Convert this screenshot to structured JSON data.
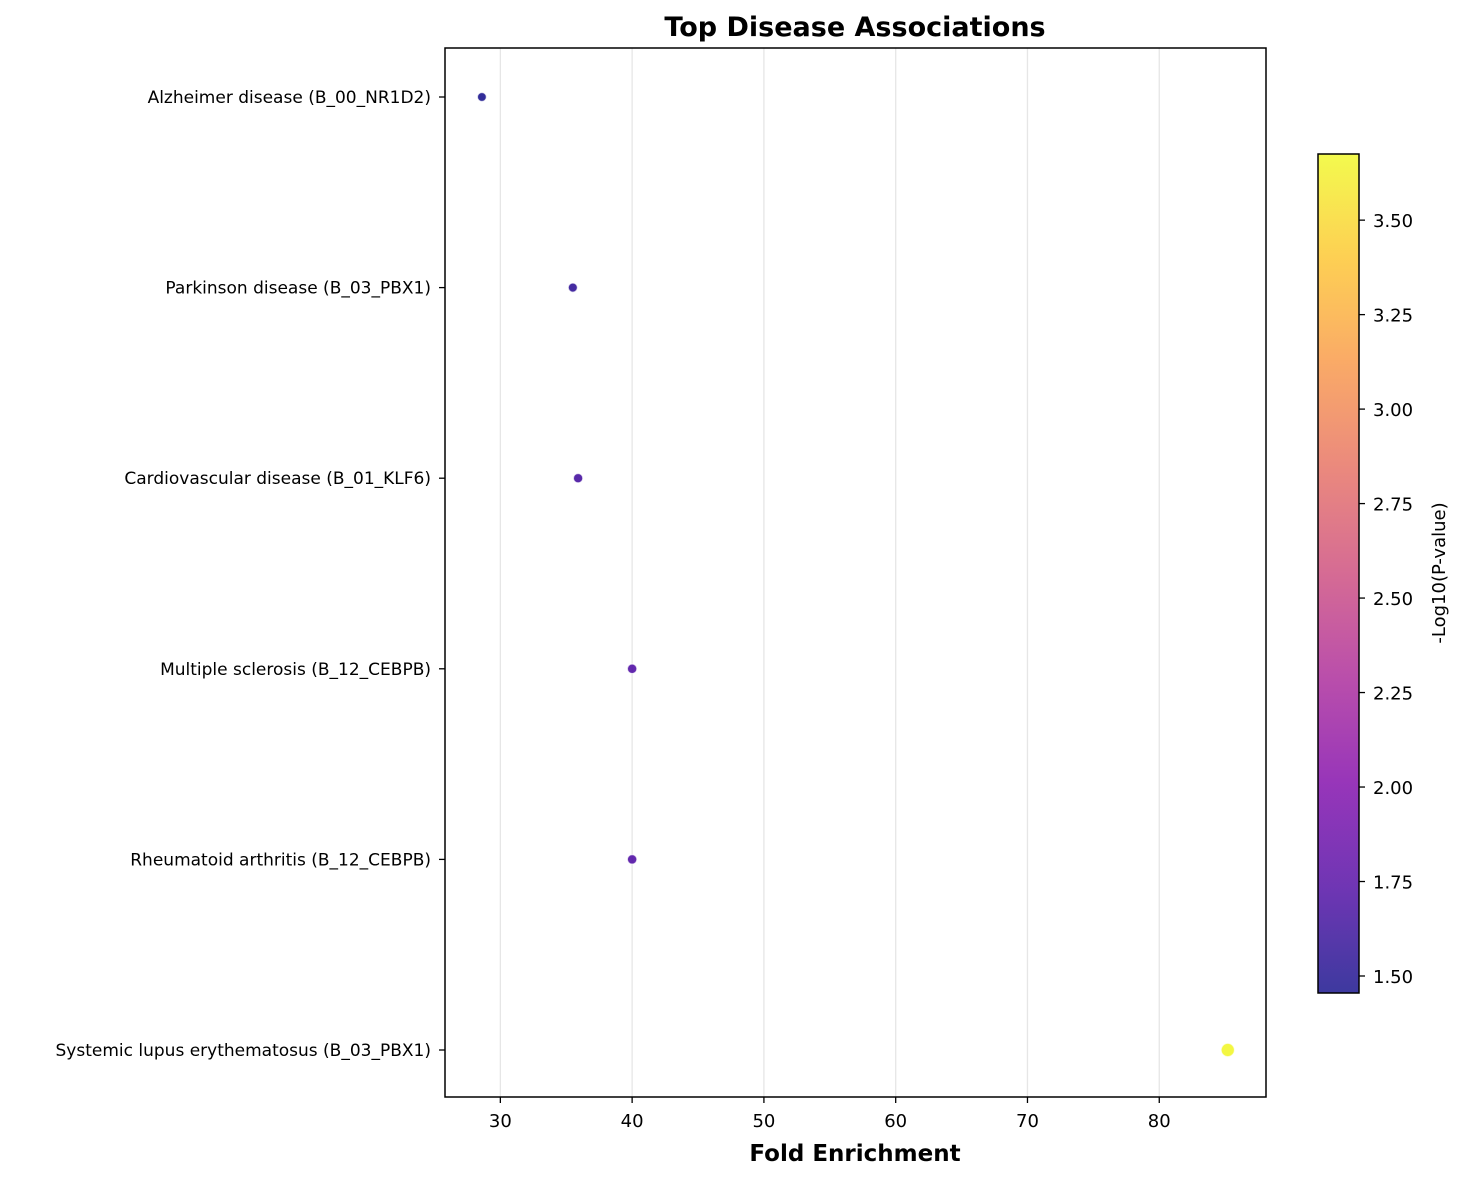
{
  "chart_data": {
    "type": "scatter",
    "title": "Top Disease Associations",
    "xlabel": "Fold Enrichment",
    "ylabel": "",
    "xlim": [
      25.8,
      88.1
    ],
    "xticks": [
      30,
      40,
      50,
      60,
      70,
      80
    ],
    "grid": "vertical",
    "colormap": "plasma",
    "colorbar": {
      "label": "-Log10(P-value)",
      "range": [
        1.455,
        3.675
      ],
      "ticks": [
        1.5,
        1.75,
        2.0,
        2.25,
        2.5,
        2.75,
        3.0,
        3.25,
        3.5
      ],
      "tick_labels": [
        "1.50",
        "1.75",
        "2.00",
        "2.25",
        "2.50",
        "2.75",
        "3.00",
        "3.25",
        "3.50"
      ]
    },
    "categories": [
      "Alzheimer disease (B_00_NR1D2)",
      "Parkinson disease (B_03_PBX1)",
      "Cardiovascular disease (B_01_KLF6)",
      "Multiple sclerosis (B_12_CEBPB)",
      "Rheumatoid arthritis (B_12_CEBPB)",
      "Systemic lupus erythematosus (B_03_PBX1)"
    ],
    "points": [
      {
        "category": "Alzheimer disease (B_00_NR1D2)",
        "x": 28.6,
        "neg_log10_p": 1.46
      },
      {
        "category": "Parkinson disease (B_03_PBX1)",
        "x": 35.5,
        "neg_log10_p": 1.56
      },
      {
        "category": "Cardiovascular disease (B_01_KLF6)",
        "x": 35.9,
        "neg_log10_p": 1.66
      },
      {
        "category": "Multiple sclerosis (B_12_CEBPB)",
        "x": 40.0,
        "neg_log10_p": 1.72
      },
      {
        "category": "Rheumatoid arthritis (B_12_CEBPB)",
        "x": 40.0,
        "neg_log10_p": 1.72
      },
      {
        "category": "Systemic lupus erythematosus (B_03_PBX1)",
        "x": 85.2,
        "neg_log10_p": 3.66
      }
    ],
    "colors": {
      "grid": "#e6e6e6",
      "axis": "#000000",
      "marker_edge": "#ffffff"
    }
  }
}
